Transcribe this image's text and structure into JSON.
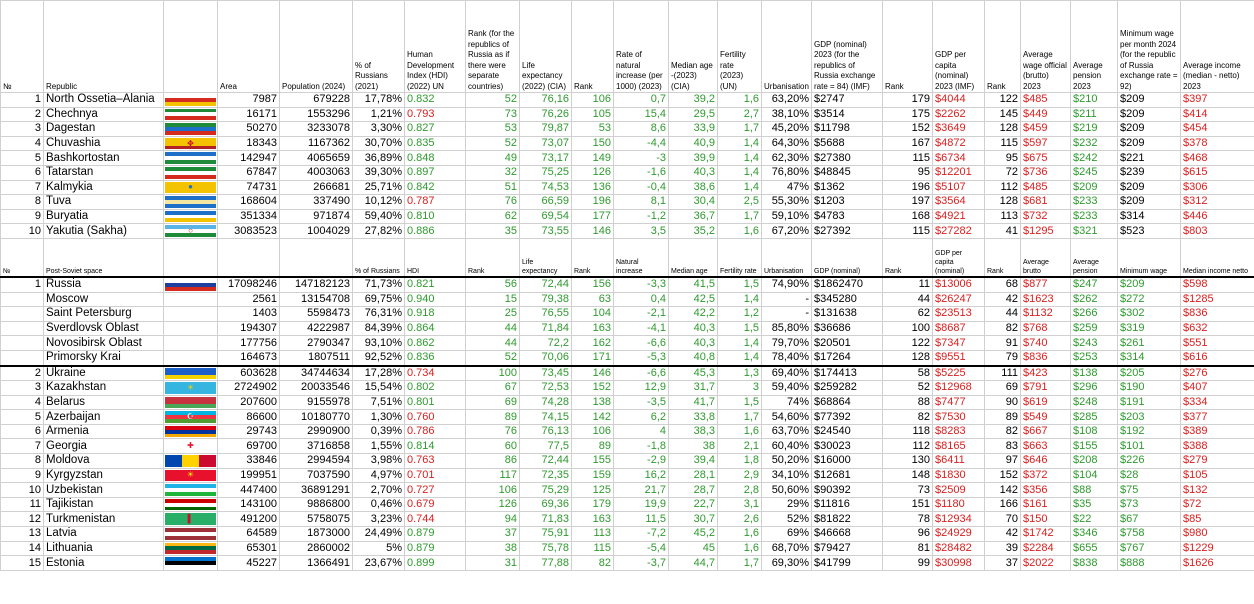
{
  "headers": [
    "№",
    "Republic",
    "",
    "Area",
    "Population (2024)",
    "% of Russians (2021)",
    "Human Development Index (HDI) (2022) UN",
    "Rank (for the republics of Russia as if there were separate countries)",
    "Life expectancy (2022) (CIA)",
    "Rank",
    "Rate of natural increase (per 1000) (2023)",
    "Median age -(2023) (CIA)",
    "Fertility rate (2023) (UN)",
    "Urbanisation",
    "GDP (nominal) 2023 (for the republics of Russia exchange rate = 84) (IMF)",
    "Rank",
    "GDP per capita (nominal) 2023 (IMF)",
    "Rank",
    "Average wage official (brutto) 2023",
    "Average pension 2023",
    "Minimum wage per month 2024 (for the republic of Russia exchange rate = 92)",
    "Average income (median - netto) 2023"
  ],
  "headers2": [
    "№",
    "Post-Soviet space",
    "",
    "",
    "",
    "% of Russians",
    "HDI",
    "Rank",
    "Life expectancy",
    "Rank",
    "Natural increase",
    "Median age",
    "Fertility rate",
    "Urbanisation",
    "GDP (nominal)",
    "Rank",
    "GDP per capita (nominal)",
    "Rank",
    "Average brutto",
    "Average pension",
    "Minimum wage",
    "Median income netto"
  ],
  "republics": [
    {
      "n": "1",
      "name": "North Ossetia–Alania",
      "area": "7987",
      "pop": "679228",
      "rus": "17,78%",
      "hdi": "0.832",
      "hr": "52",
      "le": "76,16",
      "lr": "106",
      "ni": "0,7",
      "ma": "39,2",
      "fr": "1,6",
      "ur": "63,20%",
      "gdp": "$2747",
      "gr": "179",
      "pc": "$4044",
      "pr": "122",
      "w": "$485",
      "p": "$210",
      "mw": "$209",
      "inc": "$397",
      "flag": [
        [
          "#ffffff",
          "#d52b1e",
          "#f4c300"
        ],
        "",
        ""
      ]
    },
    {
      "n": "2",
      "name": "Chechnya",
      "area": "16171",
      "pop": "1553296",
      "rus": "1,21%",
      "hdi": "0.793",
      "hr": "73",
      "le": "76,26",
      "lr": "105",
      "ni": "15,4",
      "ma": "29,5",
      "fr": "2,7",
      "ur": "38,10%",
      "gdp": "$3514",
      "gr": "175",
      "pc": "$2262",
      "pr": "145",
      "w": "$449",
      "p": "$211",
      "mw": "$209",
      "inc": "$414",
      "flag": [
        [
          "#1f8a3a",
          "#ffffff",
          "#d52b1e"
        ],
        "",
        ""
      ]
    },
    {
      "n": "3",
      "name": "Dagestan",
      "area": "50270",
      "pop": "3233078",
      "rus": "3,30%",
      "hdi": "0.827",
      "hr": "53",
      "le": "79,87",
      "lr": "53",
      "ni": "8,6",
      "ma": "33,9",
      "fr": "1,7",
      "ur": "45,20%",
      "gdp": "$11798",
      "gr": "152",
      "pc": "$3649",
      "pr": "128",
      "w": "$459",
      "p": "$219",
      "mw": "$209",
      "inc": "$454",
      "flag": [
        [
          "#1f8a3a",
          "#1e6fc8",
          "#d52b1e"
        ],
        "",
        ""
      ]
    },
    {
      "n": "4",
      "name": "Chuvashia",
      "area": "18343",
      "pop": "1167362",
      "rus": "30,70%",
      "hdi": "0.835",
      "hr": "52",
      "le": "73,07",
      "lr": "150",
      "ni": "-4,4",
      "ma": "40,9",
      "fr": "1,4",
      "ur": "64,30%",
      "gdp": "$5688",
      "gr": "167",
      "pc": "$4872",
      "pr": "115",
      "w": "$597",
      "p": "$232",
      "mw": "$209",
      "inc": "$378",
      "flag": [
        [
          "#f4c300",
          "#f4c300",
          "#b22222"
        ],
        "✥",
        ""
      ]
    },
    {
      "n": "5",
      "name": "Bashkortostan",
      "area": "142947",
      "pop": "4065659",
      "rus": "36,89%",
      "hdi": "0.848",
      "hr": "49",
      "le": "73,17",
      "lr": "149",
      "ni": "-3",
      "ma": "39,9",
      "fr": "1,4",
      "ur": "62,30%",
      "gdp": "$27380",
      "gr": "115",
      "pc": "$6734",
      "pr": "95",
      "w": "$675",
      "p": "$242",
      "mw": "$221",
      "inc": "$468",
      "flag": [
        [
          "#1e6fc8",
          "#ffffff",
          "#1f8a3a"
        ],
        "",
        ""
      ]
    },
    {
      "n": "6",
      "name": "Tatarstan",
      "area": "67847",
      "pop": "4003063",
      "rus": "39,30%",
      "hdi": "0.897",
      "hr": "32",
      "le": "75,25",
      "lr": "126",
      "ni": "-1,6",
      "ma": "40,3",
      "fr": "1,4",
      "ur": "76,80%",
      "gdp": "$48845",
      "gr": "95",
      "pc": "$12201",
      "pr": "72",
      "w": "$736",
      "p": "$245",
      "mw": "$239",
      "inc": "$615",
      "flag": [
        [
          "#1f8a3a",
          "#ffffff",
          "#d52b1e"
        ],
        "",
        ""
      ]
    },
    {
      "n": "7",
      "name": "Kalmykia",
      "area": "74731",
      "pop": "266681",
      "rus": "25,71%",
      "hdi": "0.842",
      "hr": "51",
      "le": "74,53",
      "lr": "136",
      "ni": "-0,4",
      "ma": "38,6",
      "fr": "1,4",
      "ur": "47%",
      "gdp": "$1362",
      "gr": "196",
      "pc": "$5107",
      "pr": "112",
      "w": "$485",
      "p": "$209",
      "mw": "$209",
      "inc": "$306",
      "flag": [
        [
          "#f4c300",
          "#f4c300",
          "#f4c300"
        ],
        "●",
        "#1e6fc8"
      ]
    },
    {
      "n": "8",
      "name": "Tuva",
      "area": "168604",
      "pop": "337490",
      "rus": "10,12%",
      "hdi": "0.787",
      "hr": "76",
      "le": "66,59",
      "lr": "196",
      "ni": "8,1",
      "ma": "30,4",
      "fr": "2,5",
      "ur": "55,30%",
      "gdp": "$1203",
      "gr": "197",
      "pc": "$3564",
      "pr": "128",
      "w": "$681",
      "p": "$233",
      "mw": "$209",
      "inc": "$312",
      "flag": [
        [
          "#1e6fc8",
          "#f4e6a0",
          "#1e6fc8"
        ],
        "",
        ""
      ]
    },
    {
      "n": "9",
      "name": "Buryatia",
      "area": "351334",
      "pop": "971874",
      "rus": "59,40%",
      "hdi": "0.810",
      "hr": "62",
      "le": "69,54",
      "lr": "177",
      "ni": "-1,2",
      "ma": "36,7",
      "fr": "1,7",
      "ur": "59,10%",
      "gdp": "$4783",
      "gr": "168",
      "pc": "$4921",
      "pr": "113",
      "w": "$732",
      "p": "$233",
      "mw": "$314",
      "inc": "$446",
      "flag": [
        [
          "#1e6fc8",
          "#ffffff",
          "#f4c300"
        ],
        "",
        ""
      ]
    },
    {
      "n": "10",
      "name": "Yakutia (Sakha)",
      "area": "3083523",
      "pop": "1004029",
      "rus": "27,82%",
      "hdi": "0.886",
      "hr": "35",
      "le": "73,55",
      "lr": "146",
      "ni": "3,5",
      "ma": "35,2",
      "fr": "1,6",
      "ur": "67,20%",
      "gdp": "$27392",
      "gr": "115",
      "pc": "$27282",
      "pr": "41",
      "w": "$1295",
      "p": "$321",
      "mw": "$523",
      "inc": "$803",
      "flag": [
        [
          "#5ab4e6",
          "#ffffff",
          "#1f8a3a"
        ],
        "○",
        ""
      ]
    }
  ],
  "russia": [
    {
      "n": "1",
      "name": "Russia",
      "area": "17098246",
      "pop": "147182123",
      "rus": "71,73%",
      "hdi": "0.821",
      "hr": "56",
      "le": "72,44",
      "lr": "156",
      "ni": "-3,3",
      "ma": "41,5",
      "fr": "1,5",
      "ur": "74,90%",
      "gdp": "$1862470",
      "gr": "11",
      "pc": "$13006",
      "pr": "68",
      "w": "$877",
      "p": "$247",
      "mw": "$209",
      "inc": "$598",
      "flag": [
        [
          "#ffffff",
          "#1c3fa0",
          "#d52b1e"
        ],
        "",
        ""
      ]
    },
    {
      "n": "",
      "name": "Moscow",
      "area": "2561",
      "pop": "13154708",
      "rus": "69,75%",
      "hdi": "0.940",
      "hr": "15",
      "le": "79,38",
      "lr": "63",
      "ni": "0,4",
      "ma": "42,5",
      "fr": "1,4",
      "ur": "-",
      "gdp": "$345280",
      "gr": "44",
      "pc": "$26247",
      "pr": "42",
      "w": "$1623",
      "p": "$262",
      "mw": "$272",
      "inc": "$1285"
    },
    {
      "n": "",
      "name": "Saint Petersburg",
      "area": "1403",
      "pop": "5598473",
      "rus": "76,31%",
      "hdi": "0.918",
      "hr": "25",
      "le": "76,55",
      "lr": "104",
      "ni": "-2,1",
      "ma": "42,2",
      "fr": "1,2",
      "ur": "-",
      "gdp": "$131638",
      "gr": "62",
      "pc": "$23513",
      "pr": "44",
      "w": "$1132",
      "p": "$266",
      "mw": "$302",
      "inc": "$836"
    },
    {
      "n": "",
      "name": "Sverdlovsk Oblast",
      "area": "194307",
      "pop": "4222987",
      "rus": "84,39%",
      "hdi": "0.864",
      "hr": "44",
      "le": "71,84",
      "lr": "163",
      "ni": "-4,1",
      "ma": "40,3",
      "fr": "1,5",
      "ur": "85,80%",
      "gdp": "$36686",
      "gr": "100",
      "pc": "$8687",
      "pr": "82",
      "w": "$768",
      "p": "$259",
      "mw": "$319",
      "inc": "$632"
    },
    {
      "n": "",
      "name": "Novosibirsk Oblast",
      "area": "177756",
      "pop": "2790347",
      "rus": "93,10%",
      "hdi": "0.862",
      "hr": "44",
      "le": "72,2",
      "lr": "162",
      "ni": "-6,6",
      "ma": "40,3",
      "fr": "1,4",
      "ur": "79,70%",
      "gdp": "$20501",
      "gr": "122",
      "pc": "$7347",
      "pr": "91",
      "w": "$740",
      "p": "$243",
      "mw": "$261",
      "inc": "$551"
    },
    {
      "n": "",
      "name": "Primorsky Krai",
      "area": "164673",
      "pop": "1807511",
      "rus": "92,52%",
      "hdi": "0.836",
      "hr": "52",
      "le": "70,06",
      "lr": "171",
      "ni": "-5,3",
      "ma": "40,8",
      "fr": "1,4",
      "ur": "78,40%",
      "gdp": "$17264",
      "gr": "128",
      "pc": "$9551",
      "pr": "79",
      "w": "$836",
      "p": "$253",
      "mw": "$314",
      "inc": "$616"
    }
  ],
  "countries": [
    {
      "n": "2",
      "name": "Ukraine",
      "area": "603628",
      "pop": "34744634",
      "rus": "17,28%",
      "hdi": "0.734",
      "hr": "100",
      "le": "73,45",
      "lr": "146",
      "ni": "-6,6",
      "ma": "45,3",
      "fr": "1,3",
      "ur": "69,40%",
      "gdp": "$174413",
      "gr": "58",
      "pc": "$5225",
      "pr": "111",
      "w": "$423",
      "p": "$138",
      "mw": "$205",
      "inc": "$276",
      "flag": [
        [
          "#1c5fc8",
          "#1c5fc8",
          "#f4d200"
        ],
        "",
        ""
      ]
    },
    {
      "n": "3",
      "name": "Kazakhstan",
      "area": "2724902",
      "pop": "20033546",
      "rus": "15,54%",
      "hdi": "0.802",
      "hr": "67",
      "le": "72,53",
      "lr": "152",
      "ni": "12,9",
      "ma": "31,7",
      "fr": "3",
      "ur": "59,40%",
      "gdp": "$259282",
      "gr": "52",
      "pc": "$12968",
      "pr": "69",
      "w": "$791",
      "p": "$296",
      "mw": "$190",
      "inc": "$407",
      "flag": [
        [
          "#35b5e0",
          "#35b5e0",
          "#35b5e0"
        ],
        "☀",
        "#f4d200"
      ]
    },
    {
      "n": "4",
      "name": "Belarus",
      "area": "207600",
      "pop": "9155978",
      "rus": "7,51%",
      "hdi": "0.801",
      "hr": "69",
      "le": "74,28",
      "lr": "138",
      "ni": "-3,5",
      "ma": "41,7",
      "fr": "1,5",
      "ur": "74%",
      "gdp": "$68864",
      "gr": "88",
      "pc": "$7477",
      "pr": "90",
      "w": "$619",
      "p": "$248",
      "mw": "$191",
      "inc": "$334",
      "flag": [
        [
          "#c8313e",
          "#c8313e",
          "#4aa657"
        ],
        "",
        ""
      ]
    },
    {
      "n": "5",
      "name": "Azerbaijan",
      "area": "86600",
      "pop": "10180770",
      "rus": "1,30%",
      "hdi": "0.760",
      "hr": "89",
      "le": "74,15",
      "lr": "142",
      "ni": "6,2",
      "ma": "33,8",
      "fr": "1,7",
      "ur": "54,60%",
      "gdp": "$77392",
      "gr": "82",
      "pc": "$7530",
      "pr": "89",
      "w": "$549",
      "p": "$285",
      "mw": "$203",
      "inc": "$377",
      "flag": [
        [
          "#00b5e2",
          "#ef3340",
          "#509e2f"
        ],
        "☪",
        "#ffffff"
      ]
    },
    {
      "n": "6",
      "name": "Armenia",
      "area": "29743",
      "pop": "2990900",
      "rus": "0,39%",
      "hdi": "0.786",
      "hr": "76",
      "le": "76,13",
      "lr": "106",
      "ni": "4",
      "ma": "38,3",
      "fr": "1,6",
      "ur": "63,70%",
      "gdp": "$24540",
      "gr": "118",
      "pc": "$8283",
      "pr": "82",
      "w": "$667",
      "p": "$108",
      "mw": "$192",
      "inc": "$389",
      "flag": [
        [
          "#d90012",
          "#0033a0",
          "#f2a800"
        ],
        "",
        ""
      ]
    },
    {
      "n": "7",
      "name": "Georgia",
      "area": "69700",
      "pop": "3716858",
      "rus": "1,55%",
      "hdi": "0.814",
      "hr": "60",
      "le": "77,5",
      "lr": "89",
      "ni": "-1,8",
      "ma": "38",
      "fr": "2,1",
      "ur": "60,40%",
      "gdp": "$30023",
      "gr": "112",
      "pc": "$8165",
      "pr": "83",
      "w": "$663",
      "p": "$155",
      "mw": "$101",
      "inc": "$388",
      "flag": [
        [
          "#ffffff",
          "#ffffff",
          "#ffffff"
        ],
        "✚",
        "#e8112d"
      ]
    },
    {
      "n": "8",
      "name": "Moldova",
      "area": "33846",
      "pop": "2994594",
      "rus": "3,98%",
      "hdi": "0.763",
      "hr": "86",
      "le": "72,44",
      "lr": "155",
      "ni": "-2,9",
      "ma": "39,4",
      "fr": "1,8",
      "ur": "50,20%",
      "gdp": "$16000",
      "gr": "130",
      "pc": "$6411",
      "pr": "97",
      "w": "$646",
      "p": "$208",
      "mw": "$226",
      "inc": "$279",
      "flag": [
        [
          "#0046ae",
          "#ffd200",
          "#cc092f"
        ],
        "",
        ""
      ],
      "vertical": true
    },
    {
      "n": "9",
      "name": "Kyrgyzstan",
      "area": "199951",
      "pop": "7037590",
      "rus": "4,97%",
      "hdi": "0.701",
      "hr": "117",
      "le": "72,35",
      "lr": "159",
      "ni": "16,2",
      "ma": "28,1",
      "fr": "2,9",
      "ur": "34,10%",
      "gdp": "$12681",
      "gr": "148",
      "pc": "$1830",
      "pr": "152",
      "w": "$372",
      "p": "$104",
      "mw": "$28",
      "inc": "$105",
      "flag": [
        [
          "#e8112d",
          "#e8112d",
          "#e8112d"
        ],
        "☀",
        "#ffef00"
      ]
    },
    {
      "n": "10",
      "name": "Uzbekistan",
      "area": "447400",
      "pop": "36891291",
      "rus": "2,70%",
      "hdi": "0.727",
      "hr": "106",
      "le": "75,29",
      "lr": "125",
      "ni": "21,7",
      "ma": "28,7",
      "fr": "2,8",
      "ur": "50,60%",
      "gdp": "$90392",
      "gr": "73",
      "pc": "$2509",
      "pr": "142",
      "w": "$356",
      "p": "$88",
      "mw": "$75",
      "inc": "$132",
      "flag": [
        [
          "#1eb5e6",
          "#ffffff",
          "#1eb53a"
        ],
        "",
        ""
      ]
    },
    {
      "n": "11",
      "name": "Tajikistan",
      "area": "143100",
      "pop": "9886800",
      "rus": "0,46%",
      "hdi": "0.679",
      "hr": "126",
      "le": "69,36",
      "lr": "179",
      "ni": "19,9",
      "ma": "22,7",
      "fr": "3,1",
      "ur": "29%",
      "gdp": "$11816",
      "gr": "151",
      "pc": "$1180",
      "pr": "166",
      "w": "$161",
      "p": "$35",
      "mw": "$73",
      "inc": "$72",
      "flag": [
        [
          "#cc0000",
          "#ffffff",
          "#006600"
        ],
        "",
        ""
      ]
    },
    {
      "n": "12",
      "name": "Turkmenistan",
      "area": "491200",
      "pop": "5758075",
      "rus": "3,23%",
      "hdi": "0.744",
      "hr": "94",
      "le": "71,83",
      "lr": "163",
      "ni": "11,5",
      "ma": "30,7",
      "fr": "2,6",
      "ur": "52%",
      "gdp": "$81822",
      "gr": "78",
      "pc": "$12934",
      "pr": "70",
      "w": "$150",
      "p": "$22",
      "mw": "$67",
      "inc": "$85",
      "flag": [
        [
          "#28ae66",
          "#28ae66",
          "#28ae66"
        ],
        "▌",
        "#c8102e"
      ]
    },
    {
      "n": "13",
      "name": "Latvia",
      "area": "64589",
      "pop": "1873000",
      "rus": "24,49%",
      "hdi": "0.879",
      "hr": "37",
      "le": "75,91",
      "lr": "113",
      "ni": "-7,2",
      "ma": "45,2",
      "fr": "1,6",
      "ur": "69%",
      "gdp": "$46668",
      "gr": "96",
      "pc": "$24929",
      "pr": "42",
      "w": "$1742",
      "p": "$346",
      "mw": "$758",
      "inc": "$980",
      "flag": [
        [
          "#9e3039",
          "#ffffff",
          "#9e3039"
        ],
        "",
        ""
      ]
    },
    {
      "n": "14",
      "name": "Lithuania",
      "area": "65301",
      "pop": "2860002",
      "rus": "5%",
      "hdi": "0.879",
      "hr": "38",
      "le": "75,78",
      "lr": "115",
      "ni": "-5,4",
      "ma": "45",
      "fr": "1,6",
      "ur": "68,70%",
      "gdp": "$79427",
      "gr": "81",
      "pc": "$28482",
      "pr": "39",
      "w": "$2284",
      "p": "$655",
      "mw": "$767",
      "inc": "$1229",
      "flag": [
        [
          "#fdb913",
          "#006a44",
          "#c1272d"
        ],
        "",
        ""
      ]
    },
    {
      "n": "15",
      "name": "Estonia",
      "area": "45227",
      "pop": "1366491",
      "rus": "23,67%",
      "hdi": "0.899",
      "hr": "31",
      "le": "77,88",
      "lr": "82",
      "ni": "-3,7",
      "ma": "44,7",
      "fr": "1,7",
      "ur": "69,30%",
      "gdp": "$41799",
      "gr": "99",
      "pc": "$30998",
      "pr": "37",
      "w": "$2022",
      "p": "$838",
      "mw": "$888",
      "inc": "$1626",
      "flag": [
        [
          "#0072ce",
          "#000000",
          "#ffffff"
        ],
        "",
        ""
      ]
    }
  ]
}
